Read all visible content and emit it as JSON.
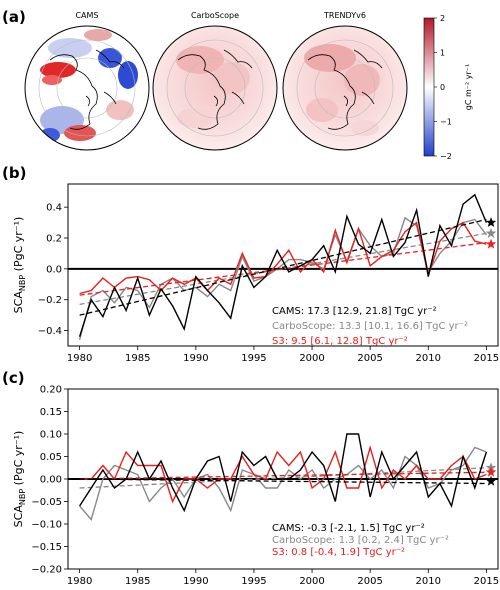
{
  "maps": {
    "label": "(a)",
    "titles": [
      "CAMS",
      "CarboScope",
      "TRENDYv6"
    ],
    "colorbar": {
      "ticks": [
        "2",
        "1",
        "0",
        "−1",
        "−2"
      ],
      "label": "gC m⁻² yr⁻¹",
      "colors": [
        "#b2182b",
        "#ffffff",
        "#2140c8"
      ]
    }
  },
  "chart_data": [
    {
      "type": "line",
      "panel_label": "(b)",
      "ylabel_main": "SCA",
      "ylabel_sub": "NBP",
      "ylabel_tail": " (PgC yr⁻¹)",
      "xlim": [
        1979,
        2016
      ],
      "ylim": [
        -0.5,
        0.55
      ],
      "xticks": [
        1980,
        1985,
        1990,
        1995,
        2000,
        2005,
        2010,
        2015
      ],
      "yticks": [
        -0.4,
        -0.2,
        0.0,
        0.2,
        0.4
      ],
      "ytick_labels": [
        "−0.4",
        "−0.2",
        "0.0",
        "0.2",
        "0.4"
      ],
      "x": [
        1980,
        1981,
        1982,
        1983,
        1984,
        1985,
        1986,
        1987,
        1988,
        1989,
        1990,
        1991,
        1992,
        1993,
        1994,
        1995,
        1996,
        1997,
        1998,
        1999,
        2000,
        2001,
        2002,
        2003,
        2004,
        2005,
        2006,
        2007,
        2008,
        2009,
        2010,
        2011,
        2012,
        2013,
        2014,
        2015
      ],
      "series": [
        {
          "name": "CAMS",
          "color": "#000000",
          "values": [
            -0.44,
            -0.2,
            -0.31,
            -0.12,
            -0.27,
            -0.06,
            -0.3,
            -0.13,
            -0.24,
            -0.39,
            -0.05,
            -0.14,
            -0.22,
            -0.32,
            0.02,
            -0.12,
            -0.05,
            0.12,
            -0.02,
            0.02,
            0.06,
            0.15,
            -0.02,
            0.34,
            0.16,
            0.1,
            0.32,
            0.08,
            0.17,
            0.38,
            -0.05,
            0.28,
            0.15,
            0.42,
            0.48,
            0.3
          ],
          "trend": [
            -0.3,
            0.32
          ],
          "marker": 0.3
        },
        {
          "name": "CarboScope",
          "color": "#888888",
          "values": [
            -0.46,
            -0.18,
            -0.14,
            -0.22,
            -0.12,
            -0.14,
            -0.25,
            -0.1,
            -0.06,
            -0.14,
            -0.12,
            -0.18,
            -0.1,
            -0.14,
            0.08,
            -0.08,
            -0.05,
            0.0,
            0.06,
            0.06,
            0.04,
            0.0,
            0.22,
            0.05,
            0.26,
            0.15,
            0.08,
            0.1,
            0.33,
            0.28,
            -0.02,
            0.1,
            0.18,
            0.3,
            0.32,
            0.22
          ],
          "trend": [
            -0.23,
            0.23
          ],
          "marker": 0.23
        },
        {
          "name": "S3",
          "color": "#e8201e",
          "values": [
            -0.16,
            -0.14,
            -0.06,
            -0.12,
            -0.06,
            -0.05,
            -0.07,
            -0.14,
            -0.06,
            -0.1,
            -0.06,
            -0.14,
            -0.06,
            -0.1,
            0.1,
            -0.06,
            -0.05,
            0.03,
            0.12,
            -0.02,
            0.06,
            -0.02,
            0.25,
            0.04,
            0.26,
            0.02,
            0.08,
            0.12,
            0.24,
            0.3,
            -0.04,
            0.18,
            0.26,
            0.3,
            0.18,
            0.16
          ],
          "trend": [
            -0.17,
            0.17
          ],
          "marker": 0.16
        }
      ],
      "annotations": [
        {
          "name": "CAMS:",
          "value": "17.3 [12.9, 21.8] TgC yr⁻²",
          "color": "#000000"
        },
        {
          "name": "CarboScope:",
          "value": "13.3 [10.1, 16.6] TgC yr⁻²",
          "color": "#888888"
        },
        {
          "name": "S3:",
          "value": "9.5 [6.1, 12.8] TgC yr⁻²",
          "color": "#e8201e"
        }
      ]
    },
    {
      "type": "line",
      "panel_label": "(c)",
      "ylabel_main": "SCA",
      "ylabel_sub": "NBP",
      "ylabel_tail": " (PgC yr⁻¹)",
      "xlim": [
        1979,
        2016
      ],
      "ylim": [
        -0.2,
        0.2
      ],
      "xticks": [
        1980,
        1985,
        1990,
        1995,
        2000,
        2005,
        2010,
        2015
      ],
      "yticks": [
        -0.2,
        -0.15,
        -0.1,
        -0.05,
        0.0,
        0.05,
        0.1,
        0.15,
        0.2
      ],
      "ytick_labels": [
        "−0.20",
        "−0.15",
        "−0.10",
        "−0.05",
        "0.00",
        "0.05",
        "0.10",
        "0.15",
        "0.20"
      ],
      "x": [
        1980,
        1981,
        1982,
        1983,
        1984,
        1985,
        1986,
        1987,
        1988,
        1989,
        1990,
        1991,
        1992,
        1993,
        1994,
        1995,
        1996,
        1997,
        1998,
        1999,
        2000,
        2001,
        2002,
        2003,
        2004,
        2005,
        2006,
        2007,
        2008,
        2009,
        2010,
        2011,
        2012,
        2013,
        2014,
        2015
      ],
      "series": [
        {
          "name": "CAMS",
          "color": "#000000",
          "values": [
            -0.06,
            -0.02,
            0.02,
            -0.02,
            0.0,
            0.06,
            0.0,
            0.04,
            -0.02,
            -0.07,
            0.0,
            0.04,
            0.05,
            -0.05,
            0.06,
            0.03,
            0.05,
            0.0,
            0.0,
            0.02,
            0.06,
            0.03,
            -0.05,
            0.1,
            0.1,
            -0.04,
            0.06,
            0.0,
            0.03,
            0.06,
            -0.04,
            -0.01,
            -0.06,
            0.05,
            -0.02,
            0.06
          ],
          "trend": [
            0.0,
            -0.01
          ],
          "marker": -0.005
        },
        {
          "name": "CarboScope",
          "color": "#888888",
          "values": [
            -0.06,
            -0.09,
            0.0,
            0.03,
            0.02,
            0.01,
            -0.05,
            -0.02,
            0.0,
            -0.04,
            0.0,
            0.01,
            -0.02,
            -0.07,
            0.02,
            0.01,
            -0.02,
            -0.02,
            0.02,
            0.0,
            0.02,
            -0.02,
            0.0,
            0.01,
            0.03,
            0.0,
            0.02,
            -0.02,
            0.05,
            0.03,
            -0.02,
            -0.01,
            0.02,
            0.03,
            0.07,
            0.06
          ],
          "trend": [
            -0.02,
            0.025
          ],
          "marker": 0.025
        },
        {
          "name": "S3",
          "color": "#e8201e",
          "values": [
            0.0,
            0.0,
            0.03,
            0.0,
            0.06,
            0.03,
            0.03,
            0.03,
            -0.05,
            0.0,
            0.0,
            -0.02,
            0.0,
            0.0,
            0.05,
            0.01,
            0.0,
            0.06,
            0.03,
            0.06,
            -0.02,
            0.0,
            0.06,
            -0.02,
            -0.02,
            0.07,
            -0.02,
            0.02,
            0.0,
            0.03,
            0.0,
            0.0,
            0.03,
            0.05,
            0.0,
            0.01
          ],
          "trend": [
            0.0,
            0.015
          ],
          "marker": 0.015
        }
      ],
      "annotations": [
        {
          "name": "CAMS:",
          "value": "-0.3 [-2.1, 1.5] TgC yr⁻²",
          "color": "#000000"
        },
        {
          "name": "CarboScope:",
          "value": "1.3 [0.2, 2.4] TgC yr⁻²",
          "color": "#888888"
        },
        {
          "name": "S3:",
          "value": "0.8 [-0.4, 1.9] TgC yr⁻²",
          "color": "#e8201e"
        }
      ]
    }
  ]
}
